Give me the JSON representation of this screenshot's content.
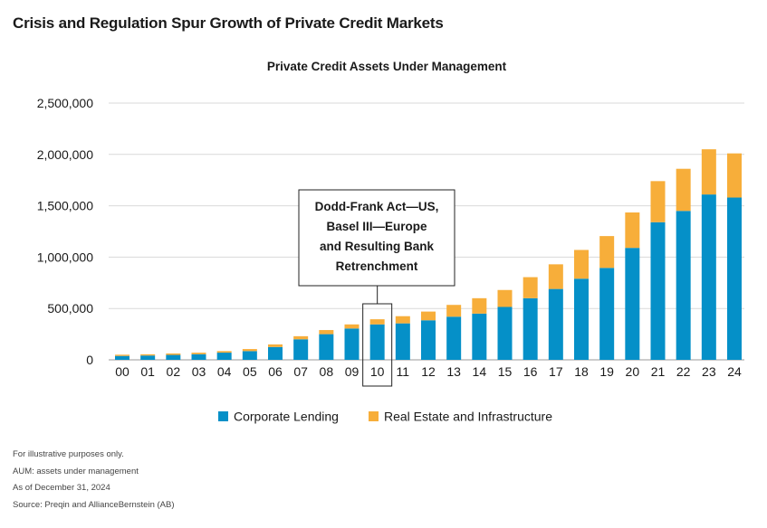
{
  "page_title": "Crisis and Regulation Spur Growth of Private Credit Markets",
  "colors": {
    "corporate": "#0590c8",
    "real_estate": "#f7ae3a",
    "gridline": "#d9d9d9",
    "text": "#1a1a1a"
  },
  "chart_data": {
    "type": "bar",
    "stacked": true,
    "title": "Private Credit Assets Under Management",
    "xlabel": "",
    "ylabel": "",
    "categories": [
      "00",
      "01",
      "02",
      "03",
      "04",
      "05",
      "06",
      "07",
      "08",
      "09",
      "10",
      "11",
      "12",
      "13",
      "14",
      "15",
      "16",
      "17",
      "18",
      "19",
      "20",
      "21",
      "22",
      "23",
      "24"
    ],
    "series": [
      {
        "name": "Corporate Lending",
        "color_key": "corporate",
        "values": [
          38000,
          42000,
          48000,
          55000,
          70000,
          85000,
          125000,
          200000,
          250000,
          305000,
          345000,
          355000,
          385000,
          420000,
          450000,
          515000,
          600000,
          690000,
          790000,
          895000,
          1090000,
          1340000,
          1450000,
          1610000,
          1580000
        ]
      },
      {
        "name": "Real Estate and Infrastructure",
        "color_key": "real_estate",
        "values": [
          12000,
          12000,
          14000,
          15000,
          15000,
          20000,
          25000,
          30000,
          40000,
          40000,
          50000,
          70000,
          85000,
          115000,
          150000,
          165000,
          205000,
          240000,
          280000,
          310000,
          345000,
          400000,
          410000,
          440000,
          430000
        ]
      }
    ],
    "ylim": [
      0,
      2500000
    ],
    "yticks": [
      0,
      500000,
      1000000,
      1500000,
      2000000,
      2500000
    ],
    "ytick_labels": [
      "0",
      "500,000",
      "1,000,000",
      "1,500,000",
      "2,000,000",
      "2,500,000"
    ],
    "grid": true,
    "legend": "bottom-center",
    "annotation": {
      "category": "10",
      "lines": [
        "Dodd-Frank Act—US,",
        "Basel III—Europe",
        "and Resulting Bank",
        "Retrenchment"
      ]
    }
  },
  "footnotes": [
    "For illustrative purposes only.",
    "AUM: assets under management",
    "As of December 31, 2024",
    "Source: Preqin and AllianceBernstein (AB)"
  ]
}
